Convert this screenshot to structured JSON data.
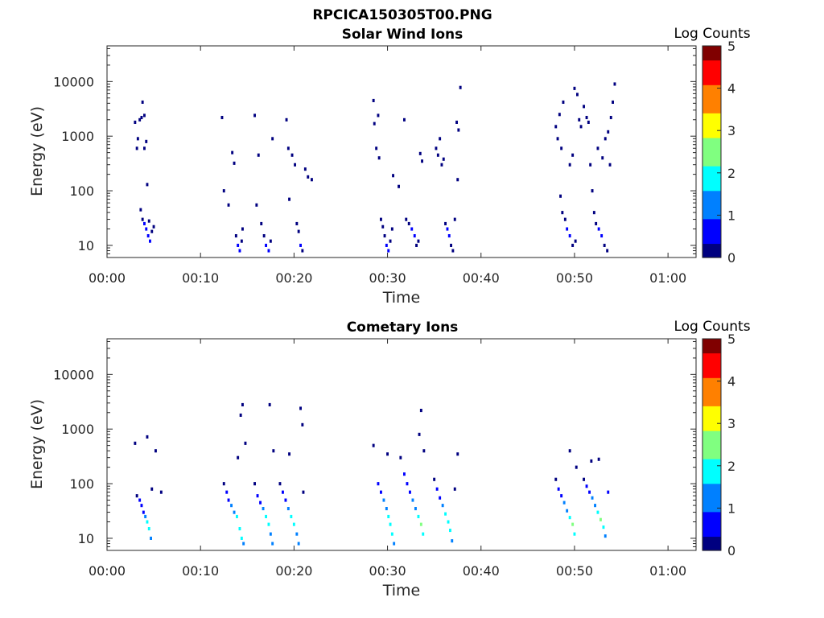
{
  "figure_title": "RPCICA150305T00.PNG",
  "colorbar_levels": [
    "0",
    "1",
    "2",
    "3",
    "4",
    "5"
  ],
  "colormap": [
    "#000080",
    "#0000ff",
    "#0080ff",
    "#00ffff",
    "#80ff80",
    "#ffff00",
    "#ff8000",
    "#ff0000",
    "#800000"
  ],
  "chart_data": [
    {
      "type": "heatmap",
      "title": "Solar Wind Ions",
      "xlabel": "Time",
      "ylabel": "Energy (eV)",
      "colorbar_label": "Log Counts",
      "y_scale": "log",
      "ylim": [
        6,
        45000
      ],
      "xlim_minutes": [
        0,
        63
      ],
      "x_tick_labels": [
        "00:00",
        "00:10",
        "00:20",
        "00:30",
        "00:40",
        "00:50",
        "01:00"
      ],
      "y_tick_labels": [
        "10",
        "100",
        "1000",
        "10000"
      ],
      "clim": [
        0,
        5
      ],
      "grid": false,
      "cells": [
        [
          3.0,
          1800,
          0.2
        ],
        [
          3.2,
          600,
          0.2
        ],
        [
          3.3,
          900,
          0.3
        ],
        [
          3.5,
          2000,
          0.3
        ],
        [
          3.7,
          2200,
          0.2
        ],
        [
          3.8,
          4200,
          0.2
        ],
        [
          4.0,
          600,
          0.3
        ],
        [
          4.2,
          800,
          0.2
        ],
        [
          4.0,
          2400,
          0.3
        ],
        [
          4.3,
          130,
          0.2
        ],
        [
          3.6,
          45,
          0.2
        ],
        [
          3.8,
          30,
          0.3
        ],
        [
          4.0,
          25,
          0.4
        ],
        [
          4.2,
          20,
          0.4
        ],
        [
          4.4,
          15,
          0.5
        ],
        [
          4.6,
          12,
          0.4
        ],
        [
          4.8,
          18,
          0.3
        ],
        [
          5.0,
          22,
          0.3
        ],
        [
          4.5,
          28,
          0.3
        ],
        [
          12.3,
          2200,
          0.2
        ],
        [
          12.5,
          100,
          0.2
        ],
        [
          13.0,
          55,
          0.2
        ],
        [
          13.4,
          500,
          0.2
        ],
        [
          13.6,
          320,
          0.2
        ],
        [
          13.8,
          15,
          0.3
        ],
        [
          14.0,
          10,
          0.4
        ],
        [
          14.2,
          8,
          0.4
        ],
        [
          14.4,
          12,
          0.3
        ],
        [
          14.5,
          20,
          0.3
        ],
        [
          15.8,
          2400,
          0.2
        ],
        [
          16.0,
          55,
          0.2
        ],
        [
          16.2,
          450,
          0.2
        ],
        [
          16.5,
          25,
          0.3
        ],
        [
          16.8,
          15,
          0.3
        ],
        [
          17.0,
          10,
          0.4
        ],
        [
          17.3,
          8,
          0.4
        ],
        [
          17.5,
          12,
          0.3
        ],
        [
          17.7,
          900,
          0.2
        ],
        [
          19.2,
          2000,
          0.2
        ],
        [
          19.4,
          600,
          0.2
        ],
        [
          19.5,
          70,
          0.2
        ],
        [
          19.8,
          450,
          0.3
        ],
        [
          20.1,
          300,
          0.2
        ],
        [
          20.3,
          25,
          0.3
        ],
        [
          20.5,
          18,
          0.3
        ],
        [
          20.7,
          10,
          0.4
        ],
        [
          20.9,
          8,
          0.3
        ],
        [
          21.2,
          250,
          0.2
        ],
        [
          21.5,
          180,
          0.2
        ],
        [
          21.9,
          160,
          0.2
        ],
        [
          28.5,
          4500,
          0.2
        ],
        [
          28.6,
          1700,
          0.2
        ],
        [
          28.8,
          600,
          0.2
        ],
        [
          29.0,
          2400,
          0.2
        ],
        [
          29.1,
          400,
          0.2
        ],
        [
          29.3,
          30,
          0.3
        ],
        [
          29.5,
          22,
          0.3
        ],
        [
          29.7,
          15,
          0.3
        ],
        [
          29.9,
          10,
          0.4
        ],
        [
          30.1,
          8,
          0.4
        ],
        [
          30.3,
          12,
          0.3
        ],
        [
          30.5,
          20,
          0.3
        ],
        [
          30.6,
          190,
          0.2
        ],
        [
          31.2,
          120,
          0.2
        ],
        [
          31.8,
          2000,
          0.2
        ],
        [
          32.0,
          30,
          0.3
        ],
        [
          32.3,
          25,
          0.3
        ],
        [
          32.6,
          20,
          0.4
        ],
        [
          32.9,
          15,
          0.4
        ],
        [
          33.1,
          10,
          0.3
        ],
        [
          33.3,
          12,
          0.3
        ],
        [
          33.5,
          480,
          0.2
        ],
        [
          33.7,
          350,
          0.2
        ],
        [
          35.2,
          600,
          0.2
        ],
        [
          35.4,
          450,
          0.2
        ],
        [
          35.6,
          900,
          0.2
        ],
        [
          35.8,
          300,
          0.2
        ],
        [
          36.0,
          380,
          0.2
        ],
        [
          36.2,
          25,
          0.3
        ],
        [
          36.4,
          20,
          0.4
        ],
        [
          36.6,
          15,
          0.4
        ],
        [
          36.8,
          10,
          0.3
        ],
        [
          37.0,
          8,
          0.3
        ],
        [
          37.2,
          30,
          0.2
        ],
        [
          37.4,
          1800,
          0.2
        ],
        [
          37.6,
          1300,
          0.2
        ],
        [
          37.8,
          7800,
          0.2
        ],
        [
          37.5,
          160,
          0.2
        ],
        [
          48.0,
          1500,
          0.2
        ],
        [
          48.2,
          900,
          0.3
        ],
        [
          48.4,
          2500,
          0.2
        ],
        [
          48.6,
          600,
          0.2
        ],
        [
          48.8,
          4200,
          0.2
        ],
        [
          48.5,
          80,
          0.2
        ],
        [
          48.7,
          40,
          0.3
        ],
        [
          49.0,
          30,
          0.3
        ],
        [
          49.2,
          20,
          0.4
        ],
        [
          49.5,
          15,
          0.4
        ],
        [
          49.8,
          10,
          0.3
        ],
        [
          50.1,
          12,
          0.3
        ],
        [
          49.5,
          300,
          0.2
        ],
        [
          49.8,
          450,
          0.2
        ],
        [
          50.0,
          7500,
          0.2
        ],
        [
          50.3,
          5800,
          0.2
        ],
        [
          50.5,
          2000,
          0.2
        ],
        [
          50.7,
          1500,
          0.2
        ],
        [
          51.0,
          3500,
          0.2
        ],
        [
          51.3,
          2200,
          0.3
        ],
        [
          51.5,
          1800,
          0.2
        ],
        [
          51.7,
          300,
          0.2
        ],
        [
          51.9,
          100,
          0.2
        ],
        [
          52.1,
          40,
          0.3
        ],
        [
          52.3,
          25,
          0.3
        ],
        [
          52.6,
          20,
          0.4
        ],
        [
          52.9,
          15,
          0.4
        ],
        [
          53.2,
          10,
          0.3
        ],
        [
          53.5,
          8,
          0.3
        ],
        [
          52.5,
          600,
          0.2
        ],
        [
          53.0,
          400,
          0.2
        ],
        [
          53.3,
          900,
          0.2
        ],
        [
          53.6,
          1200,
          0.2
        ],
        [
          53.9,
          2200,
          0.2
        ],
        [
          54.1,
          4200,
          0.2
        ],
        [
          54.3,
          9000,
          0.2
        ],
        [
          53.8,
          300,
          0.2
        ]
      ]
    },
    {
      "type": "heatmap",
      "title": "Cometary Ions",
      "xlabel": "Time",
      "ylabel": "Energy (eV)",
      "colorbar_label": "Log Counts",
      "y_scale": "log",
      "ylim": [
        6,
        45000
      ],
      "xlim_minutes": [
        0,
        63
      ],
      "x_tick_labels": [
        "00:00",
        "00:10",
        "00:20",
        "00:30",
        "00:40",
        "00:50",
        "01:00"
      ],
      "y_tick_labels": [
        "10",
        "100",
        "1000",
        "10000"
      ],
      "clim": [
        0,
        5
      ],
      "grid": false,
      "cells": [
        [
          3.0,
          550,
          0.2
        ],
        [
          3.2,
          60,
          0.3
        ],
        [
          3.5,
          50,
          0.4
        ],
        [
          3.7,
          40,
          0.6
        ],
        [
          3.9,
          30,
          0.8
        ],
        [
          4.1,
          25,
          1.2
        ],
        [
          4.3,
          20,
          1.6
        ],
        [
          4.5,
          15,
          1.9
        ],
        [
          4.7,
          10,
          1.4
        ],
        [
          4.3,
          720,
          0.2
        ],
        [
          4.8,
          80,
          0.3
        ],
        [
          5.2,
          400,
          0.2
        ],
        [
          5.8,
          70,
          0.3
        ],
        [
          12.5,
          100,
          0.3
        ],
        [
          12.8,
          70,
          0.5
        ],
        [
          13.0,
          50,
          0.8
        ],
        [
          13.3,
          40,
          1.0
        ],
        [
          13.6,
          30,
          1.3
        ],
        [
          13.9,
          25,
          1.6
        ],
        [
          14.2,
          15,
          2.0
        ],
        [
          14.4,
          10,
          1.6
        ],
        [
          14.6,
          8,
          1.0
        ],
        [
          14.3,
          1800,
          0.2
        ],
        [
          14.5,
          2800,
          0.2
        ],
        [
          14.0,
          300,
          0.2
        ],
        [
          14.8,
          550,
          0.2
        ],
        [
          15.8,
          100,
          0.3
        ],
        [
          16.1,
          60,
          0.6
        ],
        [
          16.4,
          45,
          0.9
        ],
        [
          16.7,
          35,
          1.2
        ],
        [
          17.0,
          25,
          1.6
        ],
        [
          17.3,
          18,
          2.0
        ],
        [
          17.5,
          12,
          1.4
        ],
        [
          17.7,
          8,
          1.0
        ],
        [
          17.4,
          2800,
          0.2
        ],
        [
          17.8,
          400,
          0.2
        ],
        [
          18.5,
          100,
          0.3
        ],
        [
          18.8,
          70,
          0.6
        ],
        [
          19.1,
          50,
          0.9
        ],
        [
          19.4,
          35,
          1.2
        ],
        [
          19.7,
          25,
          1.6
        ],
        [
          20.0,
          18,
          1.8
        ],
        [
          20.3,
          12,
          1.5
        ],
        [
          20.5,
          8,
          1.0
        ],
        [
          20.7,
          2400,
          0.2
        ],
        [
          20.9,
          1200,
          0.2
        ],
        [
          19.5,
          350,
          0.2
        ],
        [
          21.0,
          70,
          0.3
        ],
        [
          28.5,
          500,
          0.2
        ],
        [
          29.0,
          100,
          0.4
        ],
        [
          29.3,
          70,
          0.7
        ],
        [
          29.6,
          50,
          1.0
        ],
        [
          29.9,
          35,
          1.3
        ],
        [
          30.1,
          25,
          1.7
        ],
        [
          30.3,
          18,
          2.0
        ],
        [
          30.5,
          12,
          1.6
        ],
        [
          30.7,
          8,
          1.1
        ],
        [
          30.0,
          350,
          0.3
        ],
        [
          31.4,
          300,
          0.2
        ],
        [
          31.8,
          150,
          0.4
        ],
        [
          32.1,
          100,
          0.6
        ],
        [
          32.4,
          70,
          0.9
        ],
        [
          32.7,
          50,
          1.2
        ],
        [
          33.0,
          35,
          1.5
        ],
        [
          33.3,
          25,
          1.9
        ],
        [
          33.6,
          18,
          2.2
        ],
        [
          33.8,
          12,
          1.6
        ],
        [
          33.6,
          2200,
          0.2
        ],
        [
          33.4,
          800,
          0.2
        ],
        [
          33.9,
          400,
          0.3
        ],
        [
          35.0,
          120,
          0.3
        ],
        [
          35.3,
          80,
          0.6
        ],
        [
          35.6,
          55,
          0.9
        ],
        [
          35.9,
          40,
          1.2
        ],
        [
          36.2,
          28,
          1.6
        ],
        [
          36.5,
          20,
          2.0
        ],
        [
          36.7,
          14,
          1.6
        ],
        [
          36.9,
          9,
          1.1
        ],
        [
          37.2,
          80,
          0.3
        ],
        [
          37.5,
          350,
          0.2
        ],
        [
          48.0,
          120,
          0.3
        ],
        [
          48.3,
          80,
          0.6
        ],
        [
          48.6,
          60,
          0.9
        ],
        [
          48.9,
          45,
          1.2
        ],
        [
          49.2,
          32,
          1.5
        ],
        [
          49.5,
          24,
          1.9
        ],
        [
          49.8,
          18,
          2.2
        ],
        [
          50.0,
          12,
          1.6
        ],
        [
          49.5,
          400,
          0.2
        ],
        [
          50.2,
          200,
          0.2
        ],
        [
          51.0,
          120,
          0.3
        ],
        [
          51.3,
          90,
          0.6
        ],
        [
          51.6,
          70,
          0.9
        ],
        [
          51.9,
          55,
          1.2
        ],
        [
          52.2,
          40,
          1.5
        ],
        [
          52.5,
          30,
          1.9
        ],
        [
          52.8,
          22,
          2.2
        ],
        [
          53.1,
          16,
          1.8
        ],
        [
          53.3,
          11,
          1.3
        ],
        [
          52.6,
          280,
          0.2
        ],
        [
          51.8,
          260,
          0.3
        ],
        [
          53.6,
          70,
          0.4
        ]
      ]
    }
  ]
}
